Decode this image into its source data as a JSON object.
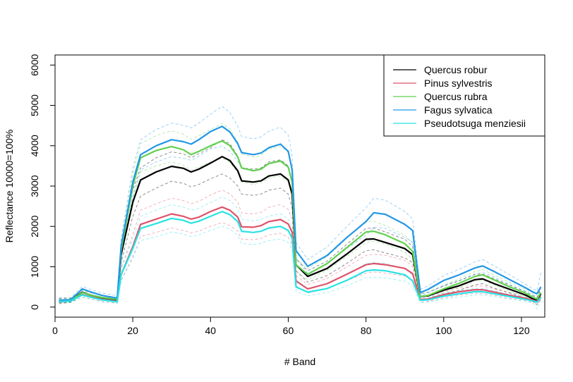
{
  "chart_data": {
    "type": "line",
    "title": "",
    "xlabel": "# Band",
    "ylabel": "Reflectance 10000=100%",
    "xlim": [
      0,
      126
    ],
    "ylim": [
      -250,
      6250
    ],
    "xticks": [
      0,
      20,
      40,
      60,
      80,
      100,
      120
    ],
    "yticks": [
      0,
      1000,
      2000,
      3000,
      4000,
      5000,
      6000
    ],
    "xtick_labels": [
      "0",
      "20",
      "40",
      "60",
      "80",
      "100",
      "120"
    ],
    "ytick_labels": [
      "0",
      "1000",
      "2000",
      "3000",
      "4000",
      "5000",
      "6000"
    ],
    "grid": false,
    "legend_position": "top-right",
    "bands": [
      1,
      4,
      7,
      9,
      12,
      16,
      17,
      20,
      22,
      26,
      30,
      33,
      35,
      37,
      40,
      43,
      45,
      47,
      48,
      51,
      53,
      55,
      58,
      60,
      61,
      62,
      65,
      70,
      75,
      80,
      82,
      85,
      90,
      92,
      94,
      96,
      100,
      104,
      108,
      110,
      113,
      117,
      121,
      123,
      124,
      125
    ],
    "series": [
      {
        "name": "Quercus robur",
        "color": "#000000",
        "mean": [
          160,
          170,
          370,
          300,
          230,
          180,
          1300,
          2600,
          3150,
          3350,
          3490,
          3440,
          3350,
          3420,
          3570,
          3730,
          3630,
          3380,
          3130,
          3100,
          3130,
          3250,
          3300,
          3150,
          2800,
          1050,
          760,
          960,
          1310,
          1680,
          1690,
          1600,
          1450,
          1300,
          260,
          280,
          420,
          530,
          680,
          700,
          580,
          440,
          300,
          200,
          160,
          330
        ],
        "upper": [
          220,
          220,
          430,
          360,
          290,
          230,
          1500,
          2900,
          3450,
          3700,
          3850,
          3800,
          3700,
          3800,
          3950,
          4150,
          4050,
          3750,
          3450,
          3420,
          3450,
          3600,
          3650,
          3500,
          3150,
          1200,
          900,
          1140,
          1550,
          1950,
          1960,
          1860,
          1680,
          1500,
          330,
          370,
          520,
          650,
          810,
          820,
          700,
          540,
          390,
          280,
          230,
          450
        ],
        "lower": [
          100,
          120,
          300,
          240,
          170,
          130,
          1100,
          2250,
          2750,
          2950,
          3120,
          3070,
          2980,
          3040,
          3180,
          3300,
          3200,
          3000,
          2800,
          2770,
          2800,
          2900,
          2950,
          2800,
          2450,
          900,
          620,
          780,
          1080,
          1400,
          1420,
          1340,
          1220,
          1100,
          190,
          200,
          320,
          420,
          550,
          580,
          470,
          350,
          220,
          130,
          60,
          200
        ]
      },
      {
        "name": "Pinus sylvestris",
        "color": "#DF536B",
        "mean": [
          130,
          150,
          310,
          260,
          190,
          140,
          800,
          1500,
          2050,
          2180,
          2310,
          2250,
          2180,
          2230,
          2370,
          2480,
          2400,
          2230,
          1990,
          1980,
          2020,
          2120,
          2170,
          2060,
          1850,
          650,
          450,
          580,
          810,
          1050,
          1080,
          1050,
          960,
          830,
          190,
          200,
          310,
          380,
          430,
          430,
          370,
          290,
          220,
          170,
          140,
          260
        ],
        "upper": [
          180,
          190,
          370,
          310,
          240,
          190,
          950,
          1800,
          2400,
          2560,
          2700,
          2640,
          2560,
          2620,
          2780,
          2900,
          2810,
          2600,
          2330,
          2310,
          2350,
          2470,
          2540,
          2420,
          2170,
          780,
          560,
          710,
          990,
          1280,
          1310,
          1280,
          1160,
          1010,
          250,
          260,
          390,
          470,
          520,
          520,
          450,
          360,
          280,
          220,
          200,
          360
        ],
        "lower": [
          80,
          110,
          250,
          210,
          140,
          100,
          660,
          1250,
          1750,
          1850,
          1960,
          1900,
          1840,
          1880,
          2000,
          2090,
          2020,
          1880,
          1680,
          1670,
          1700,
          1790,
          1830,
          1730,
          1540,
          530,
          350,
          460,
          650,
          840,
          870,
          840,
          770,
          660,
          130,
          140,
          230,
          300,
          340,
          340,
          290,
          220,
          160,
          120,
          80,
          160
        ]
      },
      {
        "name": "Quercus rubra",
        "color": "#61D04F",
        "mean": [
          150,
          160,
          360,
          300,
          240,
          190,
          1400,
          3000,
          3700,
          3880,
          3980,
          3900,
          3780,
          3860,
          4000,
          4120,
          4000,
          3720,
          3450,
          3380,
          3420,
          3560,
          3620,
          3470,
          3100,
          1050,
          810,
          1080,
          1470,
          1860,
          1880,
          1790,
          1570,
          1380,
          260,
          290,
          450,
          590,
          760,
          800,
          670,
          500,
          350,
          240,
          200,
          360
        ],
        "upper": [
          200,
          210,
          420,
          360,
          300,
          240,
          1600,
          3300,
          4050,
          4250,
          4370,
          4290,
          4160,
          4250,
          4400,
          4550,
          4420,
          4100,
          3800,
          3720,
          3760,
          3920,
          3990,
          3830,
          3430,
          1200,
          950,
          1250,
          1700,
          2120,
          2130,
          2020,
          1780,
          1580,
          330,
          370,
          540,
          700,
          880,
          930,
          790,
          610,
          440,
          320,
          270,
          480
        ],
        "lower": [
          100,
          110,
          300,
          240,
          180,
          140,
          1200,
          2700,
          3350,
          3500,
          3600,
          3520,
          3400,
          3470,
          3600,
          3690,
          3580,
          3340,
          3100,
          3040,
          3080,
          3200,
          3250,
          3110,
          2770,
          900,
          670,
          910,
          1250,
          1600,
          1630,
          1560,
          1360,
          1180,
          190,
          210,
          360,
          480,
          640,
          670,
          550,
          390,
          260,
          160,
          130,
          240
        ]
      },
      {
        "name": "Fagus sylvatica",
        "color": "#2297E6",
        "mean": [
          170,
          180,
          450,
          380,
          290,
          220,
          1500,
          3100,
          3780,
          4000,
          4150,
          4100,
          4040,
          4150,
          4350,
          4480,
          4340,
          4050,
          3830,
          3780,
          3820,
          3950,
          4040,
          3860,
          3400,
          1400,
          1010,
          1280,
          1720,
          2120,
          2340,
          2300,
          2050,
          1900,
          360,
          440,
          660,
          800,
          970,
          1020,
          880,
          680,
          480,
          370,
          330,
          500
        ],
        "upper": [
          230,
          230,
          510,
          440,
          350,
          280,
          1700,
          3450,
          4150,
          4400,
          4560,
          4510,
          4440,
          4560,
          4780,
          4980,
          4820,
          4480,
          4230,
          4170,
          4220,
          4360,
          4460,
          4260,
          3750,
          1600,
          1180,
          1490,
          1990,
          2460,
          2700,
          2650,
          2370,
          2190,
          440,
          530,
          780,
          940,
          1120,
          1180,
          1020,
          800,
          570,
          450,
          400,
          860
        ],
        "lower": [
          110,
          130,
          390,
          320,
          230,
          170,
          1300,
          2750,
          3400,
          3600,
          3730,
          3690,
          3640,
          3740,
          3920,
          3990,
          3860,
          3620,
          3430,
          3390,
          3420,
          3540,
          3620,
          3460,
          3050,
          1200,
          840,
          1070,
          1450,
          1780,
          1980,
          1950,
          1730,
          1610,
          280,
          350,
          540,
          660,
          820,
          860,
          740,
          560,
          390,
          290,
          260,
          340
        ]
      },
      {
        "name": "Pseudotsuga menziesii",
        "color": "#28E2E5",
        "mean": [
          140,
          150,
          300,
          250,
          180,
          130,
          800,
          1450,
          1950,
          2070,
          2200,
          2150,
          2080,
          2130,
          2250,
          2370,
          2290,
          2120,
          1880,
          1850,
          1880,
          1960,
          2000,
          1900,
          1700,
          500,
          370,
          460,
          660,
          900,
          920,
          900,
          800,
          650,
          170,
          180,
          270,
          330,
          380,
          380,
          330,
          260,
          190,
          150,
          120,
          240
        ],
        "upper": [
          190,
          190,
          360,
          300,
          230,
          180,
          950,
          1700,
          2250,
          2400,
          2540,
          2480,
          2400,
          2450,
          2590,
          2730,
          2640,
          2450,
          2180,
          2140,
          2170,
          2260,
          2310,
          2190,
          1960,
          610,
          460,
          570,
          800,
          1080,
          1100,
          1080,
          960,
          790,
          230,
          240,
          340,
          410,
          460,
          460,
          400,
          320,
          250,
          200,
          170,
          330
        ],
        "lower": [
          90,
          110,
          240,
          200,
          130,
          90,
          650,
          1200,
          1650,
          1740,
          1860,
          1810,
          1750,
          1790,
          1900,
          2000,
          1930,
          1780,
          1580,
          1550,
          1580,
          1650,
          1690,
          1600,
          1430,
          390,
          280,
          360,
          520,
          730,
          740,
          720,
          640,
          520,
          110,
          120,
          200,
          250,
          300,
          300,
          260,
          200,
          130,
          100,
          -50,
          140
        ]
      }
    ]
  }
}
